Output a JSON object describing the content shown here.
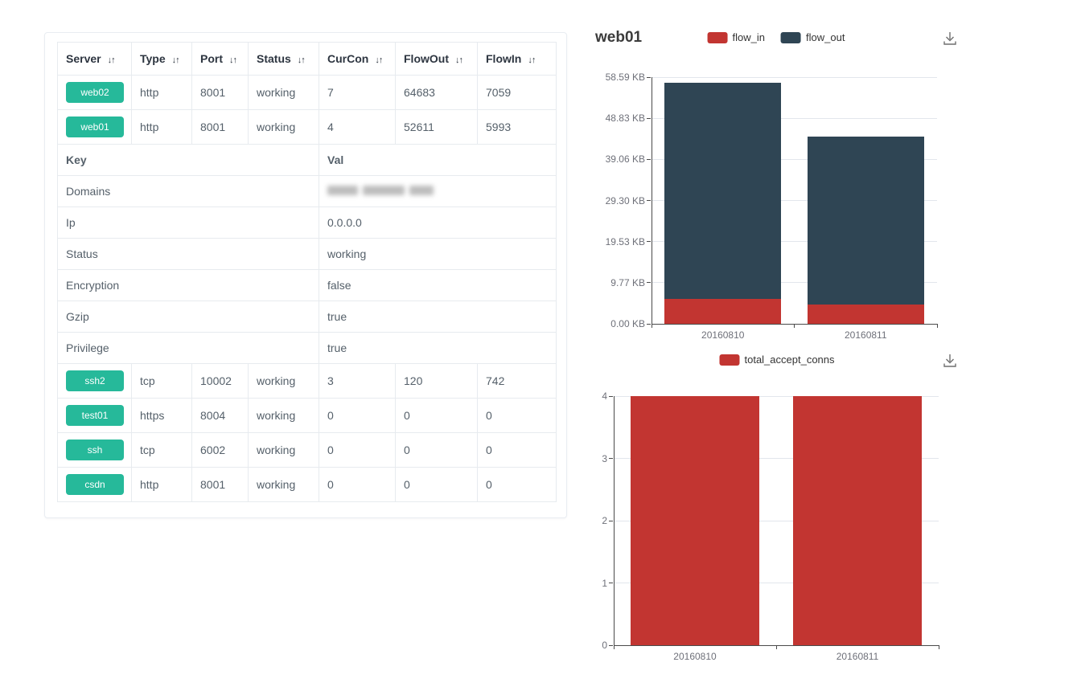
{
  "table": {
    "columns": [
      {
        "label": "Server"
      },
      {
        "label": "Type"
      },
      {
        "label": "Port"
      },
      {
        "label": "Status"
      },
      {
        "label": "CurCon"
      },
      {
        "label": "FlowOut"
      },
      {
        "label": "FlowIn"
      }
    ],
    "sort_icon": "↓↑",
    "badge_color": "#26b99a",
    "servers": [
      {
        "name": "web02",
        "type": "http",
        "port": "8001",
        "status": "working",
        "curcon": "7",
        "flowout": "64683",
        "flowin": "7059"
      },
      {
        "name": "web01",
        "type": "http",
        "port": "8001",
        "status": "working",
        "curcon": "4",
        "flowout": "52611",
        "flowin": "5993"
      },
      {
        "name": "ssh2",
        "type": "tcp",
        "port": "10002",
        "status": "working",
        "curcon": "3",
        "flowout": "120",
        "flowin": "742"
      },
      {
        "name": "test01",
        "type": "https",
        "port": "8004",
        "status": "working",
        "curcon": "0",
        "flowout": "0",
        "flowin": "0"
      },
      {
        "name": "ssh",
        "type": "tcp",
        "port": "6002",
        "status": "working",
        "curcon": "0",
        "flowout": "0",
        "flowin": "0"
      },
      {
        "name": "csdn",
        "type": "http",
        "port": "8001",
        "status": "working",
        "curcon": "0",
        "flowout": "0",
        "flowin": "0"
      }
    ],
    "kv": {
      "key_header": "Key",
      "val_header": "Val",
      "rows": [
        {
          "key": "Domains",
          "val": "",
          "blurred": true
        },
        {
          "key": "Ip",
          "val": "0.0.0.0"
        },
        {
          "key": "Status",
          "val": "working"
        },
        {
          "key": "Encryption",
          "val": "false"
        },
        {
          "key": "Gzip",
          "val": "true"
        },
        {
          "key": "Privilege",
          "val": "true"
        }
      ]
    }
  },
  "chart_data": [
    {
      "type": "bar",
      "stacked": true,
      "title": "web01",
      "categories": [
        "20160810",
        "20160811"
      ],
      "series": [
        {
          "name": "flow_in",
          "color": "#c23531",
          "values": [
            5.85,
            4.6
          ]
        },
        {
          "name": "flow_out",
          "color": "#2f4554",
          "values": [
            51.4,
            39.9
          ]
        }
      ],
      "unit": "KB",
      "ymax": 58.59,
      "y_tick_labels": [
        "58.59 KB",
        "48.83 KB",
        "39.06 KB",
        "29.30 KB",
        "19.53 KB",
        "9.77 KB",
        "0.00 KB"
      ],
      "xlabel": "",
      "ylabel": "",
      "legend_position": "top",
      "grid": true
    },
    {
      "type": "bar",
      "stacked": false,
      "title": "",
      "categories": [
        "20160810",
        "20160811"
      ],
      "series": [
        {
          "name": "total_accept_conns",
          "color": "#c23531",
          "values": [
            4,
            4
          ]
        }
      ],
      "ymax": 4,
      "y_tick_labels": [
        "4",
        "3",
        "2",
        "1",
        "0"
      ],
      "xlabel": "",
      "ylabel": "",
      "legend_position": "top",
      "grid": true
    }
  ]
}
